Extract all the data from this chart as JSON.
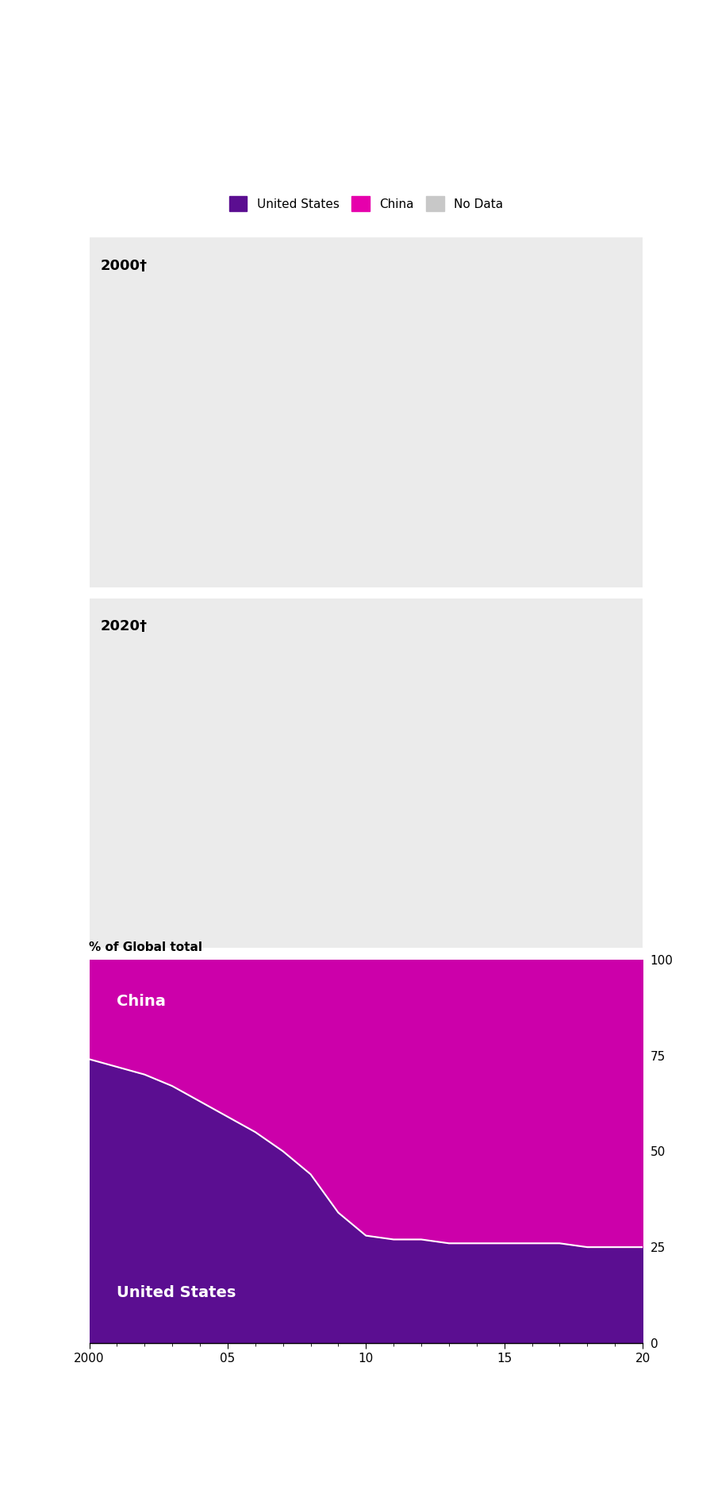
{
  "legend_colors": [
    "#5B0E91",
    "#E600AC",
    "#C8C8C8"
  ],
  "legend_labels": [
    "United States",
    "China",
    "No Data"
  ],
  "map_year_labels": [
    "2000†",
    "2020†"
  ],
  "map_bg": "#EBEBEB",
  "chart_bg": "#EBEBEB",
  "chart_title": "% of Global total",
  "chart_yticks": [
    0,
    25,
    50,
    75,
    100
  ],
  "chart_xticks": [
    2000,
    2005,
    2010,
    2015,
    2020
  ],
  "chart_xticklabels": [
    "2000",
    "05",
    "10",
    "15",
    "20"
  ],
  "us_data_x": [
    2000,
    2001,
    2002,
    2003,
    2004,
    2005,
    2006,
    2007,
    2008,
    2009,
    2010,
    2011,
    2012,
    2013,
    2014,
    2015,
    2016,
    2017,
    2018,
    2019,
    2020
  ],
  "us_data_y": [
    74,
    72,
    70,
    67,
    63,
    59,
    55,
    50,
    44,
    34,
    28,
    27,
    27,
    26,
    26,
    26,
    26,
    26,
    25,
    25,
    25
  ],
  "area_us_color": "#5B0E91",
  "area_china_color": "#CC00AA",
  "divider_color": "white",
  "china_text_color": "white",
  "us_text_color": "white",
  "us_dark": "#3D0070",
  "us_mid": "#5B0E91",
  "us_light": "#8A50C0",
  "us_xlight": "#9B59B6",
  "china_bright": "#E600AC",
  "china_light": "#E880D0",
  "china_xlight": "#D4A0D4"
}
